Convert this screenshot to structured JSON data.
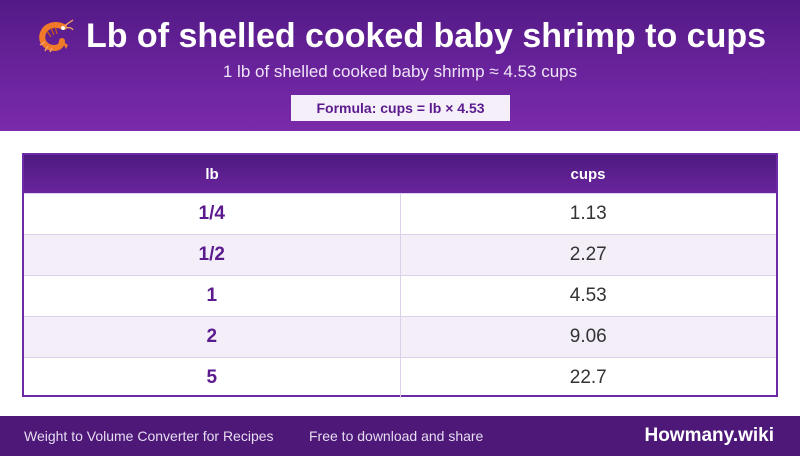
{
  "header": {
    "icon": "shrimp-icon",
    "title": "Lb of shelled cooked baby shrimp to cups",
    "subtitle": "1 lb of shelled cooked baby shrimp ≈ 4.53 cups",
    "formula": "Formula: cups = lb × 4.53"
  },
  "table": {
    "columns": [
      "lb",
      "cups"
    ],
    "rows": [
      {
        "lb": "1/4",
        "cups": "1.13"
      },
      {
        "lb": "1/2",
        "cups": "2.27"
      },
      {
        "lb": "1",
        "cups": "4.53"
      },
      {
        "lb": "2",
        "cups": "9.06"
      },
      {
        "lb": "5",
        "cups": "22.7"
      }
    ]
  },
  "footer": {
    "left_text": "Weight to Volume Converter for Recipes",
    "tagline": "Free to download and share",
    "brand": "Howmany.wiki"
  },
  "colors": {
    "header_bg": "#6a239c",
    "accent": "#5b1b8f",
    "footer_bg": "#4d1878"
  }
}
